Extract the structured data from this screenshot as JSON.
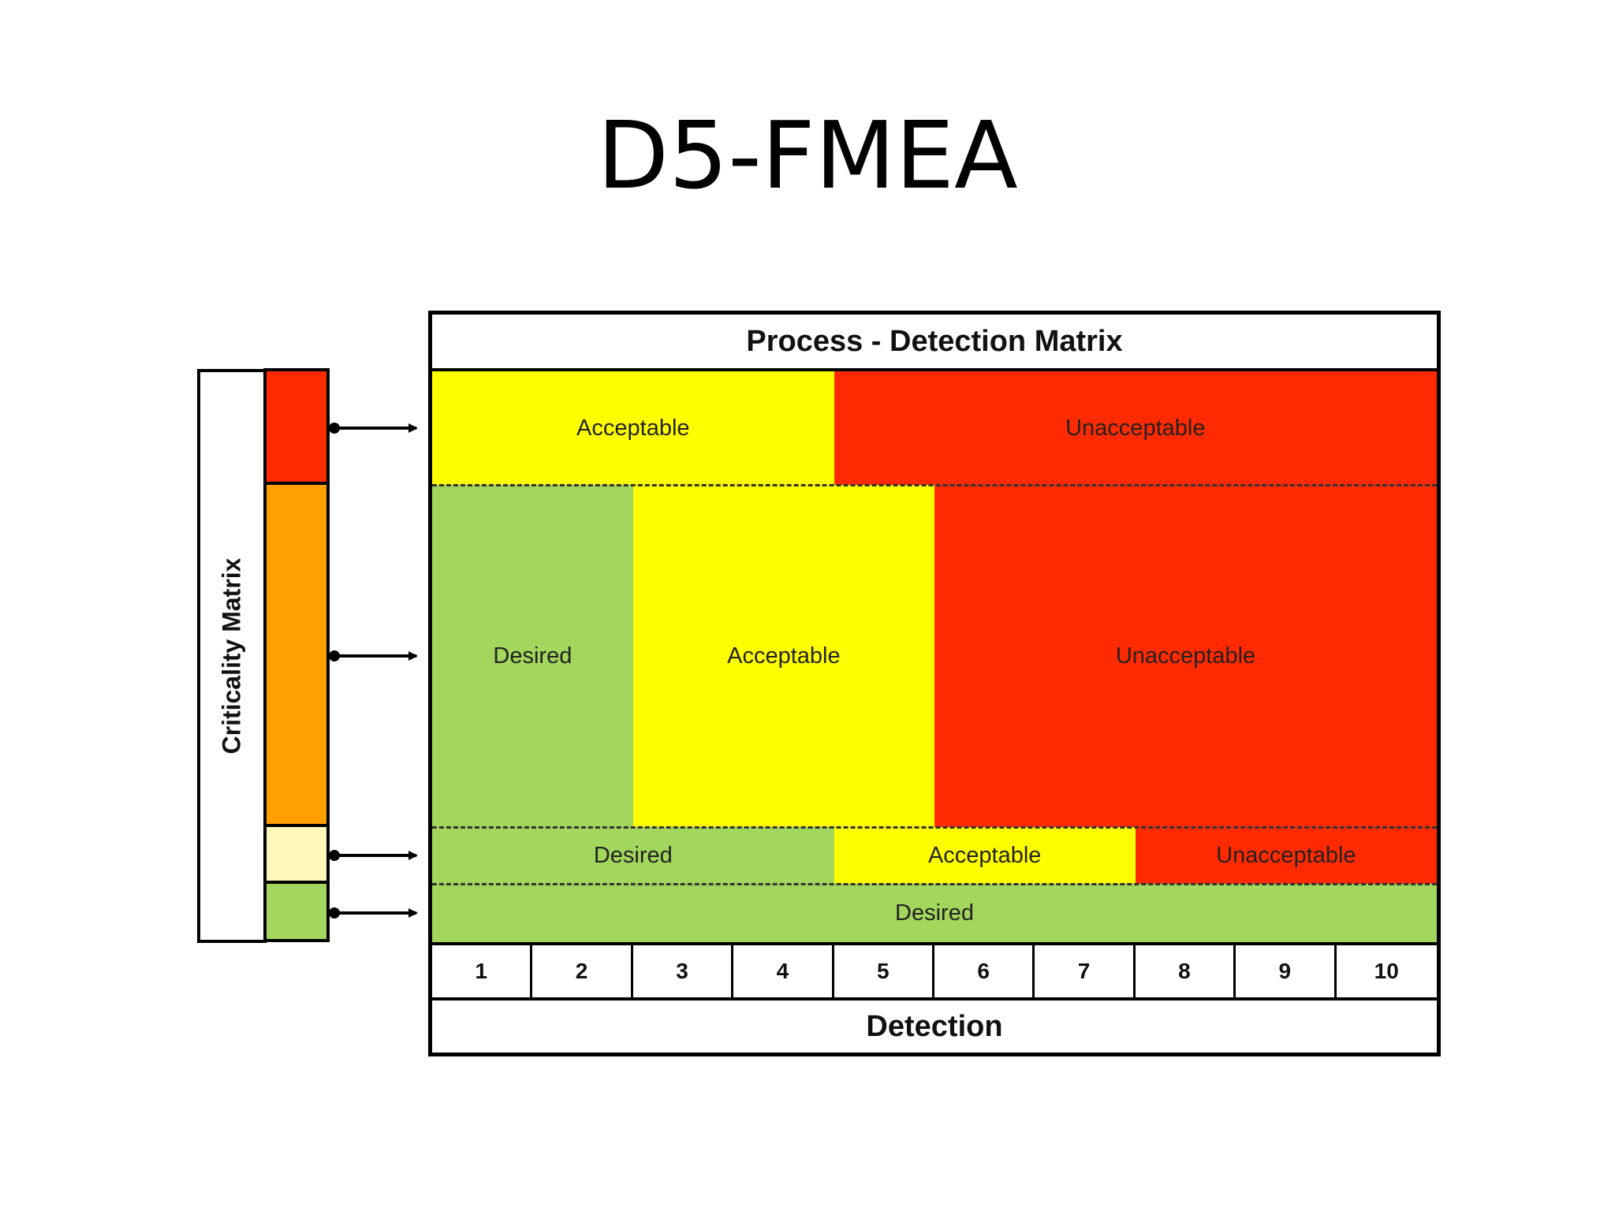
{
  "title": "D5-FMEA",
  "criticality": {
    "label": "Criticality Matrix",
    "levels": [
      {
        "color": "#ff2a00"
      },
      {
        "color": "#ffa000"
      },
      {
        "color": "#fff8b8"
      },
      {
        "color": "#a3d65c"
      }
    ]
  },
  "matrix": {
    "title": "Process - Detection Matrix",
    "colors": {
      "desired": "#a3d65c",
      "acceptable": "#ffff00",
      "unacceptable": "#ff2a00"
    },
    "rows": [
      {
        "regions": [
          {
            "label": "Acceptable",
            "status": "acceptable",
            "from": 1,
            "to": 4
          },
          {
            "label": "Unacceptable",
            "status": "unacceptable",
            "from": 5,
            "to": 10
          }
        ]
      },
      {
        "regions": [
          {
            "label": "Desired",
            "status": "desired",
            "from": 1,
            "to": 2
          },
          {
            "label": "Acceptable",
            "status": "acceptable",
            "from": 3,
            "to": 5
          },
          {
            "label": "Unacceptable",
            "status": "unacceptable",
            "from": 6,
            "to": 10
          }
        ]
      },
      {
        "regions": [
          {
            "label": "Desired",
            "status": "desired",
            "from": 1,
            "to": 4
          },
          {
            "label": "Acceptable",
            "status": "acceptable",
            "from": 5,
            "to": 7
          },
          {
            "label": "Unacceptable",
            "status": "unacceptable",
            "from": 8,
            "to": 10
          }
        ]
      },
      {
        "regions": [
          {
            "label": "Desired",
            "status": "desired",
            "from": 1,
            "to": 10
          }
        ]
      }
    ],
    "detection_scale": [
      "1",
      "2",
      "3",
      "4",
      "5",
      "6",
      "7",
      "8",
      "9",
      "10"
    ],
    "x_axis_label": "Detection"
  }
}
